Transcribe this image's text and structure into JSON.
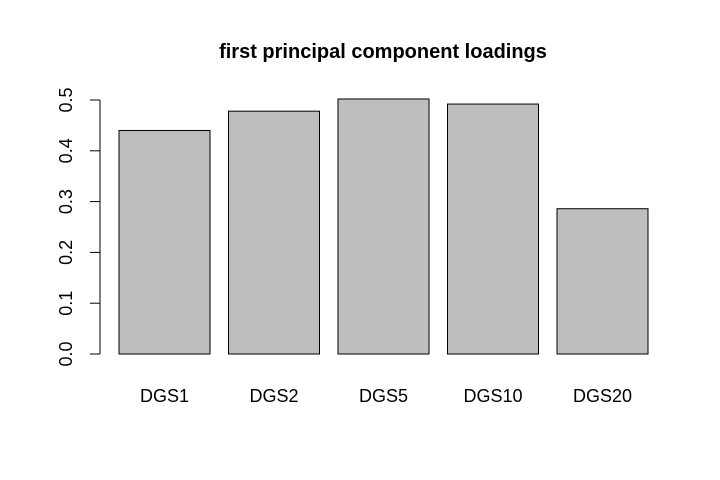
{
  "chart_data": {
    "type": "bar",
    "title": "first principal component loadings",
    "xlabel": "",
    "ylabel": "",
    "categories": [
      "DGS1",
      "DGS2",
      "DGS5",
      "DGS10",
      "DGS20"
    ],
    "values": [
      0.44,
      0.478,
      0.502,
      0.492,
      0.286
    ],
    "ylim": [
      0,
      0.5
    ],
    "yticks": [
      "0.0",
      "0.1",
      "0.2",
      "0.3",
      "0.4",
      "0.5"
    ],
    "grid": false,
    "colors": {
      "bar_fill": "#bebebe",
      "bar_stroke": "#000000",
      "axis": "#000000",
      "background": "#ffffff"
    }
  }
}
